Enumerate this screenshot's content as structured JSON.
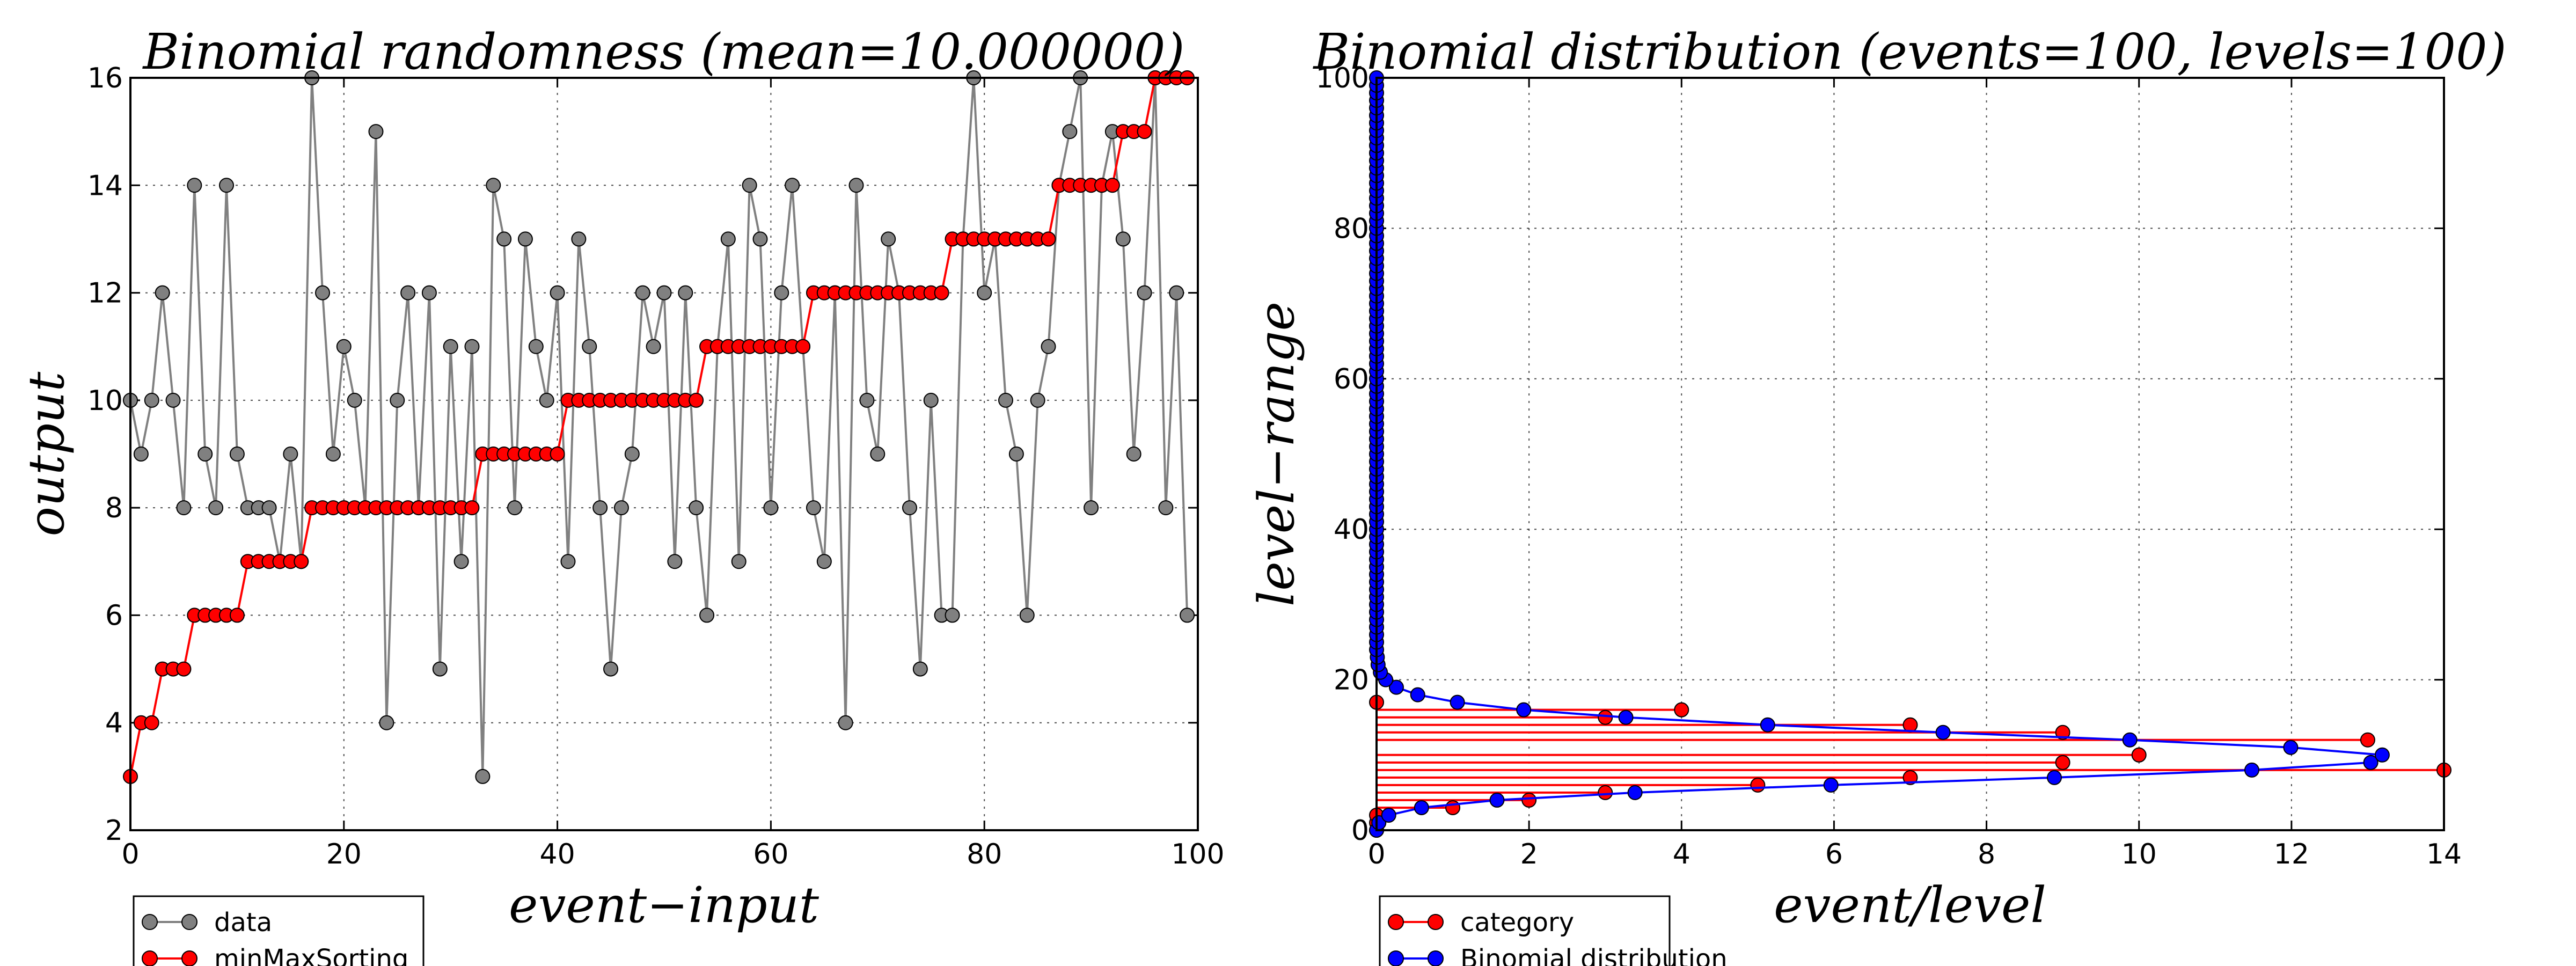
{
  "chart_data": [
    {
      "type": "line",
      "title": "Binomial randomness (mean=10.000000)",
      "xlabel": "event−input",
      "ylabel": "output",
      "xlim": [
        0,
        100
      ],
      "ylim": [
        2,
        16
      ],
      "xticks": [
        "0",
        "20",
        "40",
        "60",
        "80",
        "100"
      ],
      "yticks": [
        "2",
        "4",
        "6",
        "8",
        "10",
        "12",
        "14",
        "16"
      ],
      "grid": true,
      "legend_placement": "bottom-left, below axes",
      "series": [
        {
          "name": "data",
          "color": "#808080",
          "values": [
            10,
            9,
            10,
            12,
            10,
            8,
            14,
            9,
            8,
            14,
            9,
            8,
            8,
            8,
            7,
            9,
            7,
            16,
            12,
            9,
            11,
            10,
            8,
            15,
            4,
            10,
            12,
            8,
            12,
            5,
            11,
            7,
            11,
            3,
            14,
            13,
            8,
            13,
            11,
            10,
            12,
            7,
            13,
            11,
            8,
            5,
            8,
            9,
            12,
            11,
            12,
            7,
            12,
            8,
            6,
            11,
            13,
            7,
            14,
            13,
            8,
            12,
            14,
            11,
            8,
            7,
            12,
            4,
            14,
            10,
            9,
            13,
            12,
            8,
            5,
            10,
            6,
            6,
            13,
            16,
            12,
            13,
            10,
            9,
            6,
            10,
            11,
            14,
            15,
            16,
            8,
            14,
            15,
            13,
            9,
            12,
            16,
            8,
            12,
            6
          ]
        },
        {
          "name": "minMaxSorting",
          "color": "#ff0000",
          "values": [
            3,
            4,
            4,
            5,
            5,
            5,
            6,
            6,
            6,
            6,
            6,
            7,
            7,
            7,
            7,
            7,
            7,
            8,
            8,
            8,
            8,
            8,
            8,
            8,
            8,
            8,
            8,
            8,
            8,
            8,
            8,
            8,
            8,
            9,
            9,
            9,
            9,
            9,
            9,
            9,
            9,
            10,
            10,
            10,
            10,
            10,
            10,
            10,
            10,
            10,
            10,
            10,
            10,
            10,
            11,
            11,
            11,
            11,
            11,
            11,
            11,
            11,
            11,
            11,
            12,
            12,
            12,
            12,
            12,
            12,
            12,
            12,
            12,
            12,
            12,
            12,
            12,
            13,
            13,
            13,
            13,
            13,
            13,
            13,
            13,
            13,
            13,
            14,
            14,
            14,
            14,
            14,
            14,
            15,
            15,
            15,
            16,
            16,
            16,
            16
          ]
        }
      ]
    },
    {
      "type": "line",
      "title": "Binomial distribution (events=100, levels=100)",
      "xlabel": "event/level",
      "ylabel": "level−range",
      "xlim": [
        0,
        14
      ],
      "ylim": [
        0,
        100
      ],
      "xticks": [
        "0",
        "2",
        "4",
        "6",
        "8",
        "10",
        "12",
        "14"
      ],
      "yticks": [
        "0",
        "20",
        "40",
        "60",
        "80",
        "100"
      ],
      "grid": true,
      "legend_placement": "bottom-left, below axes",
      "series": [
        {
          "name": "category",
          "color": "#ff0000",
          "x": [
            0,
            0,
            0,
            1,
            2,
            3,
            5,
            7,
            14,
            9,
            10,
            13,
            9,
            7,
            3,
            4,
            0
          ],
          "y": [
            0,
            1,
            2,
            3,
            4,
            5,
            6,
            7,
            8,
            9,
            10,
            12,
            13,
            14,
            15,
            16,
            17
          ]
        },
        {
          "name": "Binomial distribution",
          "color": "#0000ff",
          "x": [
            0.0,
            0.03,
            0.16,
            0.59,
            1.58,
            3.39,
            5.96,
            8.89,
            11.48,
            13.04,
            13.19,
            11.99,
            9.88,
            7.43,
            5.13,
            3.27,
            1.93,
            1.06,
            0.54,
            0.26,
            0.12,
            0.05,
            0.02,
            0.01,
            0,
            0,
            0,
            0,
            0,
            0,
            0,
            0,
            0,
            0,
            0,
            0,
            0,
            0,
            0,
            0,
            0,
            0,
            0,
            0,
            0,
            0,
            0,
            0,
            0,
            0,
            0,
            0,
            0,
            0,
            0,
            0,
            0,
            0,
            0,
            0,
            0,
            0,
            0,
            0,
            0,
            0,
            0,
            0,
            0,
            0,
            0,
            0,
            0,
            0,
            0,
            0,
            0,
            0,
            0,
            0,
            0,
            0,
            0,
            0,
            0,
            0,
            0,
            0,
            0,
            0,
            0,
            0,
            0,
            0,
            0,
            0,
            0,
            0,
            0,
            0,
            0
          ],
          "y_range": [
            0,
            100
          ]
        }
      ]
    }
  ]
}
